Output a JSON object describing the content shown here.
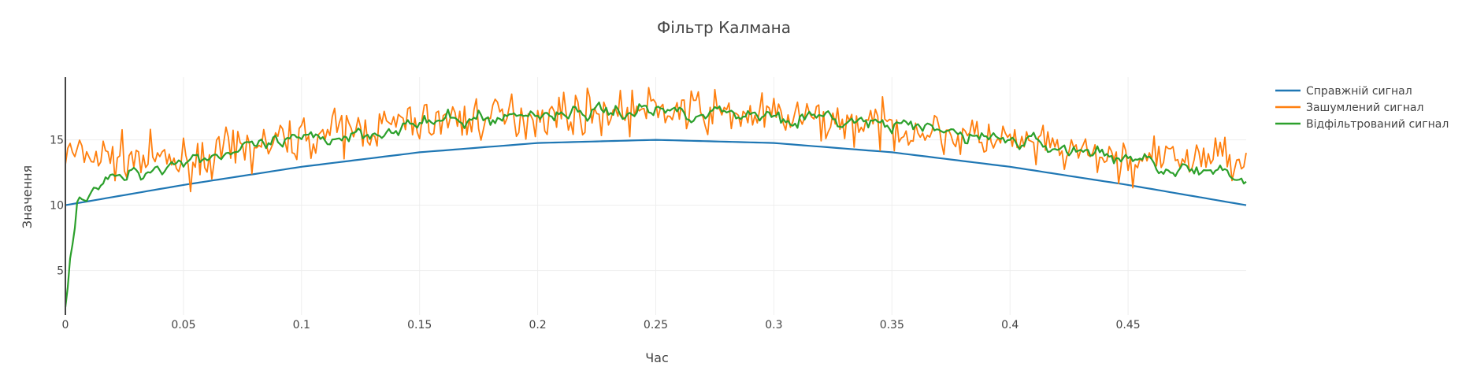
{
  "chart_data": {
    "type": "line",
    "title": "Фільтр Калмана",
    "xlabel": "Час",
    "ylabel": "Значення",
    "xlim": [
      0,
      0.5
    ],
    "ylim": [
      1.6,
      19.8
    ],
    "x_ticks": [
      "0",
      "0.05",
      "0.1",
      "0.15",
      "0.2",
      "0.25",
      "0.3",
      "0.35",
      "0.4",
      "0.45"
    ],
    "x_tick_values": [
      0,
      0.05,
      0.1,
      0.15,
      0.2,
      0.25,
      0.3,
      0.35,
      0.4,
      0.45
    ],
    "y_ticks": [
      "5",
      "10",
      "15"
    ],
    "y_tick_values": [
      5,
      10,
      15
    ],
    "grid": true,
    "legend_position": "top-right",
    "series": [
      {
        "name": "Справжній сигнал",
        "color": "#1f77b4",
        "x": [
          0,
          0.05,
          0.1,
          0.15,
          0.2,
          0.25,
          0.3,
          0.35,
          0.4,
          0.45,
          0.5
        ],
        "y": [
          10.0,
          11.55,
          12.94,
          14.05,
          14.76,
          15.0,
          14.76,
          14.05,
          12.94,
          11.55,
          10.0
        ]
      },
      {
        "name": "Зашумлений сигнал",
        "color": "#ff7f0e",
        "x": [
          0,
          0.05,
          0.1,
          0.15,
          0.2,
          0.25,
          0.3,
          0.35,
          0.4,
          0.45,
          0.5
        ],
        "y": [
          13.9,
          13.3,
          15.2,
          16.4,
          16.9,
          17.3,
          16.8,
          16.0,
          14.8,
          13.3,
          13.9
        ]
      },
      {
        "name": "Відфільтрований сигнал",
        "color": "#2ca02c",
        "x": [
          0,
          0.005,
          0.01,
          0.02,
          0.05,
          0.1,
          0.15,
          0.2,
          0.25,
          0.3,
          0.35,
          0.4,
          0.45,
          0.5
        ],
        "y": [
          2.2,
          10.3,
          11.2,
          11.9,
          13.5,
          14.9,
          16.2,
          17.0,
          17.3,
          16.9,
          16.1,
          15.0,
          13.6,
          11.8
        ]
      }
    ]
  }
}
